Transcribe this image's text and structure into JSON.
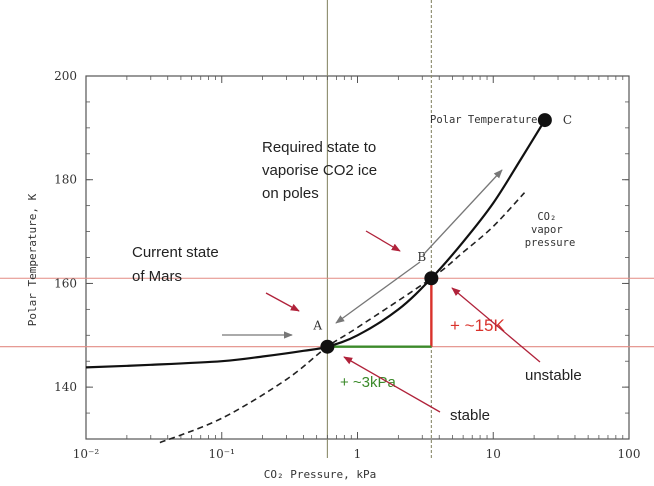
{
  "chart_data": {
    "type": "line",
    "xlabel": "CO₂ Pressure, kPa",
    "ylabel": "Polar Temperature, K",
    "xscale": "log",
    "xlim": [
      0.01,
      100
    ],
    "ylim": [
      130,
      200
    ],
    "xticks": [
      {
        "value": 0.01,
        "label": "10⁻²"
      },
      {
        "value": 0.1,
        "label": "10⁻¹"
      },
      {
        "value": 1,
        "label": "1"
      },
      {
        "value": 10,
        "label": "10"
      },
      {
        "value": 100,
        "label": "100"
      }
    ],
    "yticks": [
      {
        "value": 140,
        "label": "140"
      },
      {
        "value": 160,
        "label": "160"
      },
      {
        "value": 180,
        "label": "180"
      },
      {
        "value": 200,
        "label": "200"
      }
    ],
    "series": [
      {
        "name": "Polar Temperature",
        "style": "solid",
        "color": "#111111",
        "x": [
          0.01,
          0.03,
          0.1,
          0.2,
          0.4,
          0.6,
          1.0,
          2.0,
          3.5,
          6.0,
          10.0,
          16.0,
          24.0
        ],
        "y": [
          143.8,
          144.3,
          145.0,
          145.9,
          147.0,
          147.8,
          150.0,
          155.0,
          161.0,
          168.0,
          175.5,
          184.0,
          191.5
        ]
      },
      {
        "name": "CO₂ vapor pressure",
        "style": "dashed",
        "color": "#222222",
        "x": [
          0.035,
          0.1,
          0.3,
          0.6,
          1.0,
          3.5,
          6.0,
          10.0,
          17.0
        ],
        "y": [
          129.3,
          134.0,
          141.5,
          147.8,
          151.5,
          161.0,
          166.0,
          171.0,
          177.5
        ]
      }
    ],
    "points": [
      {
        "label": "A",
        "x": 0.6,
        "y": 147.8
      },
      {
        "label": "B",
        "x": 3.5,
        "y": 161.0
      },
      {
        "label": "C",
        "x": 24.0,
        "y": 191.5
      }
    ],
    "reference_lines": {
      "vertical_x": [
        0.6,
        3.5
      ],
      "horizontal_y": [
        147.8,
        161.0
      ],
      "vertical_color": "#8a8a6a",
      "horizontal_color": "#e38b84"
    },
    "annotations": {
      "polar_temperature": "Polar Temperature",
      "required_state": [
        "Required state to",
        "vaporise CO2 ice",
        "on poles"
      ],
      "current_state": [
        "Current state",
        "of Mars"
      ],
      "vapor_pressure": [
        "CO₂",
        "vapor",
        "pressure"
      ],
      "delta_t": "+ ~15K",
      "delta_p": "+ ~3kPa",
      "unstable": "unstable",
      "stable": "stable"
    },
    "colors": {
      "delta_t": "#d9322b",
      "delta_p": "#3b8a2a",
      "red_arrow": "#b0223a",
      "gray_arrow": "#777777"
    },
    "grid": false,
    "legend": "none"
  }
}
